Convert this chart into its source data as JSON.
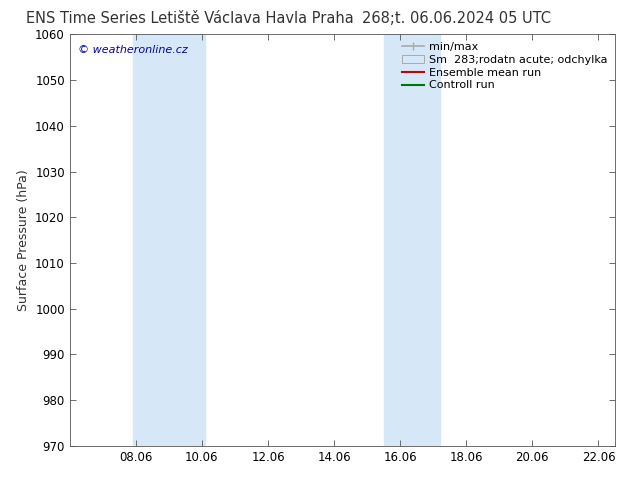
{
  "title_left": "ENS Time Series Letiště Václava Havla Praha",
  "title_right": "268;t. 06.06.2024 05 UTC",
  "ylabel": "Surface Pressure (hPa)",
  "ylim": [
    970,
    1060
  ],
  "yticks": [
    970,
    980,
    990,
    1000,
    1010,
    1020,
    1030,
    1040,
    1050,
    1060
  ],
  "xlim_start": 6.0,
  "xlim_end": 22.5,
  "xtick_positions": [
    8.0,
    10.0,
    12.0,
    14.0,
    16.0,
    18.0,
    20.0,
    22.0
  ],
  "xtick_labels": [
    "08.06",
    "10.06",
    "12.06",
    "14.06",
    "16.06",
    "18.06",
    "20.06",
    "22.06"
  ],
  "shade_bands": [
    {
      "xmin": 7.9,
      "xmax": 10.1
    },
    {
      "xmin": 15.5,
      "xmax": 17.2
    }
  ],
  "shade_color": "#d6e8f7",
  "watermark_text": "© weatheronline.cz",
  "watermark_color": "#0000bb",
  "legend_labels": [
    "min/max",
    "Sm  283;rodatn acute; odchylka",
    "Ensemble mean run",
    "Controll run"
  ],
  "legend_minmax_color": "#aaaaaa",
  "legend_patch_facecolor": "#d6e8f7",
  "legend_patch_edgecolor": "#aaaaaa",
  "legend_red": "#cc0000",
  "legend_green": "#007700",
  "background_color": "#ffffff",
  "title_fontsize": 10.5,
  "tick_fontsize": 8.5,
  "ylabel_fontsize": 9,
  "legend_fontsize": 8,
  "watermark_fontsize": 8
}
